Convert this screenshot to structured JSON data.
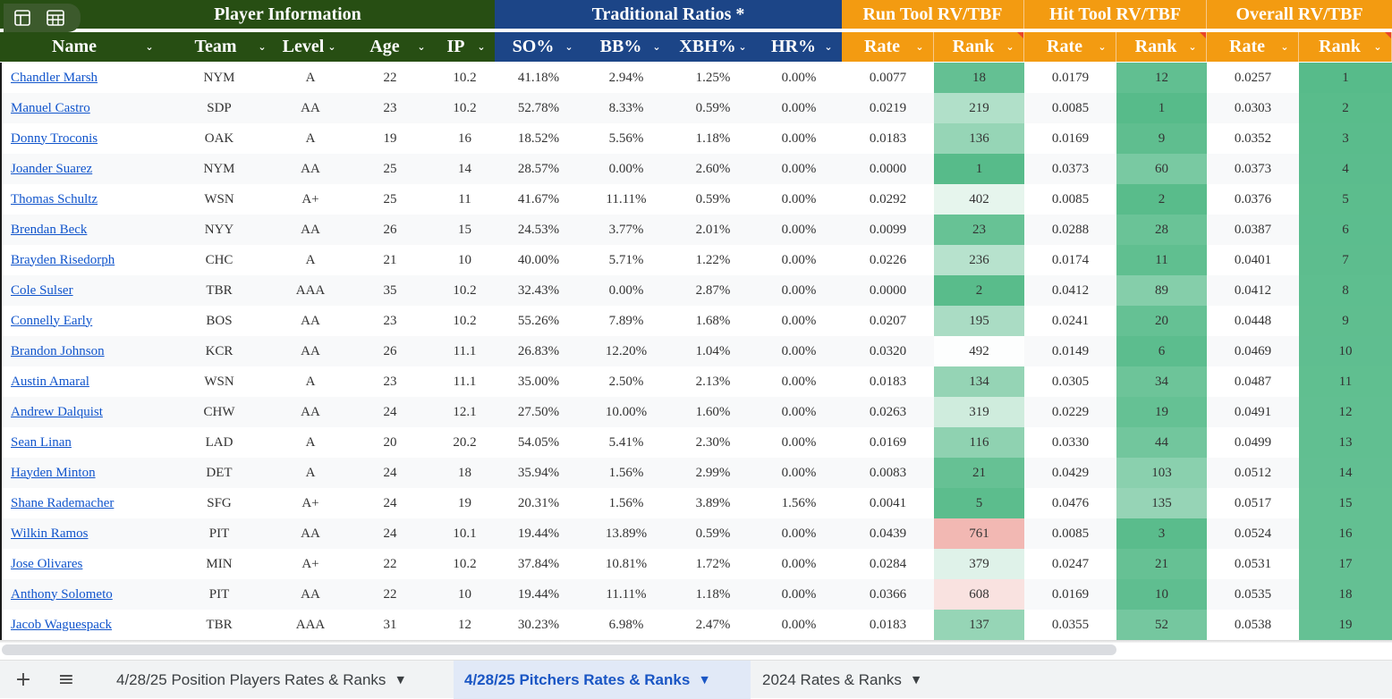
{
  "header": {
    "groups": [
      {
        "key": "player",
        "label": "Player Information"
      },
      {
        "key": "trad",
        "label": "Traditional Ratios *"
      },
      {
        "key": "run",
        "label": "Run Tool RV/TBF"
      },
      {
        "key": "hit",
        "label": "Hit Tool RV/TBF"
      },
      {
        "key": "overall",
        "label": "Overall RV/TBF"
      }
    ],
    "columns": [
      "Name",
      "Team",
      "Level",
      "Age",
      "IP",
      "SO%",
      "BB%",
      "XBH%",
      "HR%",
      "Rate",
      "Rank",
      "Rate",
      "Rank",
      "Rate",
      "Rank"
    ],
    "dropdown_glyph": "⌄"
  },
  "rows": [
    {
      "name": "Chandler Marsh",
      "team": "NYM",
      "level": "A",
      "age": "22",
      "ip": "10.2",
      "so": "41.18%",
      "bb": "2.94%",
      "xbh": "1.25%",
      "hr": "0.00%",
      "run_rate": "0.0077",
      "run_rank": "18",
      "hit_rate": "0.0179",
      "hit_rank": "12",
      "ovr_rate": "0.0257",
      "ovr_rank": "1"
    },
    {
      "name": "Manuel Castro",
      "team": "SDP",
      "level": "AA",
      "age": "23",
      "ip": "10.2",
      "so": "52.78%",
      "bb": "8.33%",
      "xbh": "0.59%",
      "hr": "0.00%",
      "run_rate": "0.0219",
      "run_rank": "219",
      "hit_rate": "0.0085",
      "hit_rank": "1",
      "ovr_rate": "0.0303",
      "ovr_rank": "2"
    },
    {
      "name": "Donny Troconis",
      "team": "OAK",
      "level": "A",
      "age": "19",
      "ip": "16",
      "so": "18.52%",
      "bb": "5.56%",
      "xbh": "1.18%",
      "hr": "0.00%",
      "run_rate": "0.0183",
      "run_rank": "136",
      "hit_rate": "0.0169",
      "hit_rank": "9",
      "ovr_rate": "0.0352",
      "ovr_rank": "3"
    },
    {
      "name": "Joander Suarez",
      "team": "NYM",
      "level": "AA",
      "age": "25",
      "ip": "14",
      "so": "28.57%",
      "bb": "0.00%",
      "xbh": "2.60%",
      "hr": "0.00%",
      "run_rate": "0.0000",
      "run_rank": "1",
      "hit_rate": "0.0373",
      "hit_rank": "60",
      "ovr_rate": "0.0373",
      "ovr_rank": "4"
    },
    {
      "name": "Thomas Schultz",
      "team": "WSN",
      "level": "A+",
      "age": "25",
      "ip": "11",
      "so": "41.67%",
      "bb": "11.11%",
      "xbh": "0.59%",
      "hr": "0.00%",
      "run_rate": "0.0292",
      "run_rank": "402",
      "hit_rate": "0.0085",
      "hit_rank": "2",
      "ovr_rate": "0.0376",
      "ovr_rank": "5"
    },
    {
      "name": "Brendan Beck",
      "team": "NYY",
      "level": "AA",
      "age": "26",
      "ip": "15",
      "so": "24.53%",
      "bb": "3.77%",
      "xbh": "2.01%",
      "hr": "0.00%",
      "run_rate": "0.0099",
      "run_rank": "23",
      "hit_rate": "0.0288",
      "hit_rank": "28",
      "ovr_rate": "0.0387",
      "ovr_rank": "6"
    },
    {
      "name": "Brayden Risedorph",
      "team": "CHC",
      "level": "A",
      "age": "21",
      "ip": "10",
      "so": "40.00%",
      "bb": "5.71%",
      "xbh": "1.22%",
      "hr": "0.00%",
      "run_rate": "0.0226",
      "run_rank": "236",
      "hit_rate": "0.0174",
      "hit_rank": "11",
      "ovr_rate": "0.0401",
      "ovr_rank": "7"
    },
    {
      "name": "Cole Sulser",
      "team": "TBR",
      "level": "AAA",
      "age": "35",
      "ip": "10.2",
      "so": "32.43%",
      "bb": "0.00%",
      "xbh": "2.87%",
      "hr": "0.00%",
      "run_rate": "0.0000",
      "run_rank": "2",
      "hit_rate": "0.0412",
      "hit_rank": "89",
      "ovr_rate": "0.0412",
      "ovr_rank": "8"
    },
    {
      "name": "Connelly Early",
      "team": "BOS",
      "level": "AA",
      "age": "23",
      "ip": "10.2",
      "so": "55.26%",
      "bb": "7.89%",
      "xbh": "1.68%",
      "hr": "0.00%",
      "run_rate": "0.0207",
      "run_rank": "195",
      "hit_rate": "0.0241",
      "hit_rank": "20",
      "ovr_rate": "0.0448",
      "ovr_rank": "9"
    },
    {
      "name": "Brandon Johnson",
      "team": "KCR",
      "level": "AA",
      "age": "26",
      "ip": "11.1",
      "so": "26.83%",
      "bb": "12.20%",
      "xbh": "1.04%",
      "hr": "0.00%",
      "run_rate": "0.0320",
      "run_rank": "492",
      "hit_rate": "0.0149",
      "hit_rank": "6",
      "ovr_rate": "0.0469",
      "ovr_rank": "10"
    },
    {
      "name": "Austin Amaral",
      "team": "WSN",
      "level": "A",
      "age": "23",
      "ip": "11.1",
      "so": "35.00%",
      "bb": "2.50%",
      "xbh": "2.13%",
      "hr": "0.00%",
      "run_rate": "0.0183",
      "run_rank": "134",
      "hit_rate": "0.0305",
      "hit_rank": "34",
      "ovr_rate": "0.0487",
      "ovr_rank": "11"
    },
    {
      "name": "Andrew Dalquist",
      "team": "CHW",
      "level": "AA",
      "age": "24",
      "ip": "12.1",
      "so": "27.50%",
      "bb": "10.00%",
      "xbh": "1.60%",
      "hr": "0.00%",
      "run_rate": "0.0263",
      "run_rank": "319",
      "hit_rate": "0.0229",
      "hit_rank": "19",
      "ovr_rate": "0.0491",
      "ovr_rank": "12"
    },
    {
      "name": "Sean Linan",
      "team": "LAD",
      "level": "A",
      "age": "20",
      "ip": "20.2",
      "so": "54.05%",
      "bb": "5.41%",
      "xbh": "2.30%",
      "hr": "0.00%",
      "run_rate": "0.0169",
      "run_rank": "116",
      "hit_rate": "0.0330",
      "hit_rank": "44",
      "ovr_rate": "0.0499",
      "ovr_rank": "13"
    },
    {
      "name": "Hayden Minton",
      "team": "DET",
      "level": "A",
      "age": "24",
      "ip": "18",
      "so": "35.94%",
      "bb": "1.56%",
      "xbh": "2.99%",
      "hr": "0.00%",
      "run_rate": "0.0083",
      "run_rank": "21",
      "hit_rate": "0.0429",
      "hit_rank": "103",
      "ovr_rate": "0.0512",
      "ovr_rank": "14"
    },
    {
      "name": "Shane Rademacher",
      "team": "SFG",
      "level": "A+",
      "age": "24",
      "ip": "19",
      "so": "20.31%",
      "bb": "1.56%",
      "xbh": "3.89%",
      "hr": "1.56%",
      "run_rate": "0.0041",
      "run_rank": "5",
      "hit_rate": "0.0476",
      "hit_rank": "135",
      "ovr_rate": "0.0517",
      "ovr_rank": "15"
    },
    {
      "name": "Wilkin Ramos",
      "team": "PIT",
      "level": "AA",
      "age": "24",
      "ip": "10.1",
      "so": "19.44%",
      "bb": "13.89%",
      "xbh": "0.59%",
      "hr": "0.00%",
      "run_rate": "0.0439",
      "run_rank": "761",
      "hit_rate": "0.0085",
      "hit_rank": "3",
      "ovr_rate": "0.0524",
      "ovr_rank": "16"
    },
    {
      "name": "Jose Olivares",
      "team": "MIN",
      "level": "A+",
      "age": "22",
      "ip": "10.2",
      "so": "37.84%",
      "bb": "10.81%",
      "xbh": "1.72%",
      "hr": "0.00%",
      "run_rate": "0.0284",
      "run_rank": "379",
      "hit_rate": "0.0247",
      "hit_rank": "21",
      "ovr_rate": "0.0531",
      "ovr_rank": "17"
    },
    {
      "name": "Anthony Solometo",
      "team": "PIT",
      "level": "AA",
      "age": "22",
      "ip": "10",
      "so": "19.44%",
      "bb": "11.11%",
      "xbh": "1.18%",
      "hr": "0.00%",
      "run_rate": "0.0366",
      "run_rank": "608",
      "hit_rate": "0.0169",
      "hit_rank": "10",
      "ovr_rate": "0.0535",
      "ovr_rank": "18"
    },
    {
      "name": "Jacob Waguespack",
      "team": "TBR",
      "level": "AAA",
      "age": "31",
      "ip": "12",
      "so": "30.23%",
      "bb": "6.98%",
      "xbh": "2.47%",
      "hr": "0.00%",
      "run_rate": "0.0183",
      "run_rank": "137",
      "hit_rate": "0.0355",
      "hit_rank": "52",
      "ovr_rate": "0.0538",
      "ovr_rank": "19"
    }
  ],
  "heatmap": {
    "colors": {
      "best": "#57bb8a",
      "mid": "#ffffff",
      "worst": "#e67c73"
    },
    "min_rank": 1,
    "max_rank": 900
  },
  "tabbar": {
    "add_icon": "+",
    "menu_icon": "≡",
    "tabs": [
      {
        "label": "4/28/25 Position Players Rates & Ranks",
        "active": false
      },
      {
        "label": "4/28/25 Pitchers Rates & Ranks",
        "active": true
      },
      {
        "label": "2024 Rates & Ranks",
        "active": false
      }
    ],
    "tab_dropdown_glyph": "▼"
  }
}
